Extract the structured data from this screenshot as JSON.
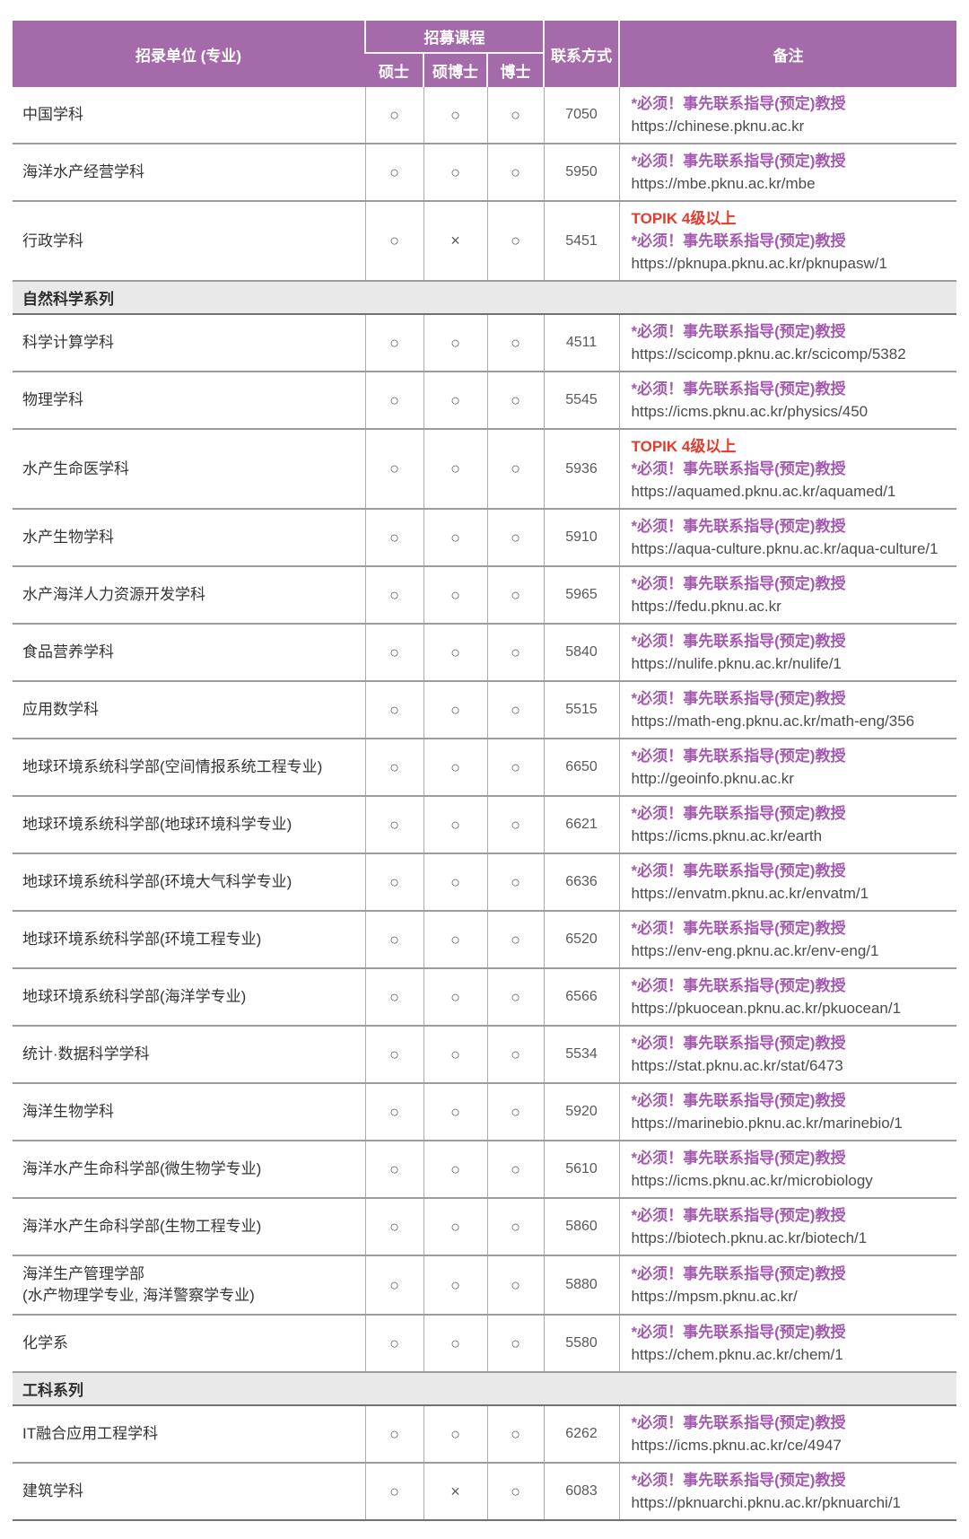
{
  "colors": {
    "accent": "#a46aa9",
    "headerLine": "#f7f2f7",
    "sectionBg": "#e9e9e9",
    "topikRed": "#e53a2c",
    "notePurple": "#a45ab0",
    "urlGray": "#4c4c4c",
    "contactGray": "#58595b",
    "markGray": "#5a5f66",
    "text": "#343434",
    "line": "#9c9c9c",
    "vline": "#ababab",
    "lineDark": "#717171"
  },
  "table": {
    "header": {
      "unit": "招录单位 (专业)",
      "courses_group": "招募课程",
      "course_cols": [
        "硕士",
        "硕博士",
        "博士"
      ],
      "contact": "联系方式",
      "remark": "备注"
    },
    "sections": [
      {
        "header": null,
        "rows": [
          {
            "name": "中国学科",
            "courses": [
              "○",
              "○",
              "○"
            ],
            "contact": "7050",
            "remarks": [
              {
                "type": "note",
                "text": "*必须！事先联系指导(预定)教授"
              },
              {
                "type": "url",
                "text": "https://chinese.pknu.ac.kr"
              }
            ]
          },
          {
            "name": "海洋水产经营学科",
            "courses": [
              "○",
              "○",
              "○"
            ],
            "contact": "5950",
            "remarks": [
              {
                "type": "note",
                "text": "*必须！事先联系指导(预定)教授"
              },
              {
                "type": "url",
                "text": "https://mbe.pknu.ac.kr/mbe"
              }
            ]
          },
          {
            "name": "行政学科",
            "courses": [
              "○",
              "×",
              "○"
            ],
            "contact": "5451",
            "remarks": [
              {
                "type": "topik",
                "text": "TOPIK 4级以上"
              },
              {
                "type": "note",
                "text": "*必须！事先联系指导(预定)教授"
              },
              {
                "type": "url",
                "text": "https://pknupa.pknu.ac.kr/pknupasw/1"
              }
            ]
          }
        ]
      },
      {
        "header": "自然科学系列",
        "rows": [
          {
            "name": "科学计算学科",
            "courses": [
              "○",
              "○",
              "○"
            ],
            "contact": "4511",
            "remarks": [
              {
                "type": "note",
                "text": "*必须！事先联系指导(预定)教授"
              },
              {
                "type": "url",
                "text": "https://scicomp.pknu.ac.kr/scicomp/5382"
              }
            ]
          },
          {
            "name": "物理学科",
            "courses": [
              "○",
              "○",
              "○"
            ],
            "contact": "5545",
            "remarks": [
              {
                "type": "note",
                "text": "*必须！事先联系指导(预定)教授"
              },
              {
                "type": "url",
                "text": "https://icms.pknu.ac.kr/physics/450"
              }
            ]
          },
          {
            "name": "水产生命医学科",
            "courses": [
              "○",
              "○",
              "○"
            ],
            "contact": "5936",
            "remarks": [
              {
                "type": "topik",
                "text": "TOPIK 4级以上"
              },
              {
                "type": "note",
                "text": "*必须！事先联系指导(预定)教授"
              },
              {
                "type": "url",
                "text": "https://aquamed.pknu.ac.kr/aquamed/1"
              }
            ]
          },
          {
            "name": "水产生物学科",
            "courses": [
              "○",
              "○",
              "○"
            ],
            "contact": "5910",
            "remarks": [
              {
                "type": "note",
                "text": "*必须！事先联系指导(预定)教授"
              },
              {
                "type": "url",
                "text": "https://aqua-culture.pknu.ac.kr/aqua-culture/1"
              }
            ]
          },
          {
            "name": "水产海洋人力资源开发学科",
            "courses": [
              "○",
              "○",
              "○"
            ],
            "contact": "5965",
            "remarks": [
              {
                "type": "note",
                "text": "*必须！事先联系指导(预定)教授"
              },
              {
                "type": "url",
                "text": "https://fedu.pknu.ac.kr"
              }
            ]
          },
          {
            "name": "食品营养学科",
            "courses": [
              "○",
              "○",
              "○"
            ],
            "contact": "5840",
            "remarks": [
              {
                "type": "note",
                "text": "*必须！事先联系指导(预定)教授"
              },
              {
                "type": "url",
                "text": "https://nulife.pknu.ac.kr/nulife/1"
              }
            ]
          },
          {
            "name": "应用数学科",
            "courses": [
              "○",
              "○",
              "○"
            ],
            "contact": "5515",
            "remarks": [
              {
                "type": "note",
                "text": "*必须！事先联系指导(预定)教授"
              },
              {
                "type": "url",
                "text": "https://math-eng.pknu.ac.kr/math-eng/356"
              }
            ]
          },
          {
            "name": "地球环境系统科学部(空间情报系统工程专业)",
            "courses": [
              "○",
              "○",
              "○"
            ],
            "contact": "6650",
            "remarks": [
              {
                "type": "note",
                "text": "*必须！事先联系指导(预定)教授"
              },
              {
                "type": "url",
                "text": "http://geoinfo.pknu.ac.kr"
              }
            ]
          },
          {
            "name": "地球环境系统科学部(地球环境科学专业)",
            "courses": [
              "○",
              "○",
              "○"
            ],
            "contact": "6621",
            "remarks": [
              {
                "type": "note",
                "text": "*必须！事先联系指导(预定)教授"
              },
              {
                "type": "url",
                "text": "https://icms.pknu.ac.kr/earth"
              }
            ]
          },
          {
            "name": "地球环境系统科学部(环境大气科学专业)",
            "courses": [
              "○",
              "○",
              "○"
            ],
            "contact": "6636",
            "remarks": [
              {
                "type": "note",
                "text": "*必须！事先联系指导(预定)教授"
              },
              {
                "type": "url",
                "text": "https://envatm.pknu.ac.kr/envatm/1"
              }
            ]
          },
          {
            "name": "地球环境系统科学部(环境工程专业)",
            "courses": [
              "○",
              "○",
              "○"
            ],
            "contact": "6520",
            "remarks": [
              {
                "type": "note",
                "text": "*必须！事先联系指导(预定)教授"
              },
              {
                "type": "url",
                "text": "https://env-eng.pknu.ac.kr/env-eng/1"
              }
            ]
          },
          {
            "name": "地球环境系统科学部(海洋学专业)",
            "courses": [
              "○",
              "○",
              "○"
            ],
            "contact": "6566",
            "remarks": [
              {
                "type": "note",
                "text": "*必须！事先联系指导(预定)教授"
              },
              {
                "type": "url",
                "text": "https://pkuocean.pknu.ac.kr/pkuocean/1"
              }
            ]
          },
          {
            "name": "统计·数据科学学科",
            "courses": [
              "○",
              "○",
              "○"
            ],
            "contact": "5534",
            "remarks": [
              {
                "type": "note",
                "text": "*必须！事先联系指导(预定)教授"
              },
              {
                "type": "url",
                "text": "https://stat.pknu.ac.kr/stat/6473"
              }
            ]
          },
          {
            "name": "海洋生物学科",
            "courses": [
              "○",
              "○",
              "○"
            ],
            "contact": "5920",
            "remarks": [
              {
                "type": "note",
                "text": "*必须！事先联系指导(预定)教授"
              },
              {
                "type": "url",
                "text": "https://marinebio.pknu.ac.kr/marinebio/1"
              }
            ]
          },
          {
            "name": "海洋水产生命科学部(微生物学专业)",
            "courses": [
              "○",
              "○",
              "○"
            ],
            "contact": "5610",
            "remarks": [
              {
                "type": "note",
                "text": "*必须！事先联系指导(预定)教授"
              },
              {
                "type": "url",
                "text": "https://icms.pknu.ac.kr/microbiology"
              }
            ]
          },
          {
            "name": "海洋水产生命科学部(生物工程专业)",
            "courses": [
              "○",
              "○",
              "○"
            ],
            "contact": "5860",
            "remarks": [
              {
                "type": "note",
                "text": "*必须！事先联系指导(预定)教授"
              },
              {
                "type": "url",
                "text": "https://biotech.pknu.ac.kr/biotech/1"
              }
            ]
          },
          {
            "name": "海洋生产管理学部\n(水产物理学专业, 海洋警察学专业)",
            "courses": [
              "○",
              "○",
              "○"
            ],
            "contact": "5880",
            "remarks": [
              {
                "type": "note",
                "text": "*必须！事先联系指导(预定)教授"
              },
              {
                "type": "url",
                "text": "https://mpsm.pknu.ac.kr/"
              }
            ]
          },
          {
            "name": "化学系",
            "courses": [
              "○",
              "○",
              "○"
            ],
            "contact": "5580",
            "remarks": [
              {
                "type": "note",
                "text": "*必须！事先联系指导(预定)教授"
              },
              {
                "type": "url",
                "text": "https://chem.pknu.ac.kr/chem/1"
              }
            ]
          }
        ]
      },
      {
        "header": "工科系列",
        "rows": [
          {
            "name": "IT融合应用工程学科",
            "courses": [
              "○",
              "○",
              "○"
            ],
            "contact": "6262",
            "remarks": [
              {
                "type": "note",
                "text": "*必须！事先联系指导(预定)教授"
              },
              {
                "type": "url",
                "text": "https://icms.pknu.ac.kr/ce/4947"
              }
            ]
          },
          {
            "name": "建筑学科",
            "courses": [
              "○",
              "×",
              "○"
            ],
            "contact": "6083",
            "remarks": [
              {
                "type": "note",
                "text": "*必须！事先联系指导(预定)教授"
              },
              {
                "type": "url",
                "text": "https://pknuarchi.pknu.ac.kr/pknuarchi/1"
              }
            ]
          }
        ]
      }
    ]
  }
}
